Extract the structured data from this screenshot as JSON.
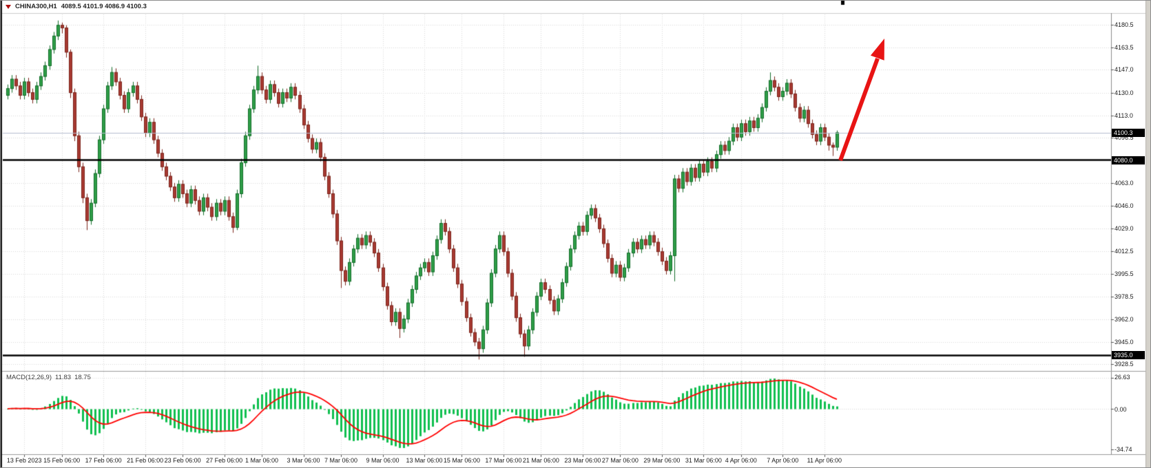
{
  "header": {
    "symbol_title": "CHINA300,H1",
    "ohlc_text": "4089.5 4101.9 4086.9 4100.3"
  },
  "chart_data": {
    "type": "candlestick",
    "symbol": "CHINA300",
    "timeframe": "H1",
    "title": "CHINA300,H1",
    "current_price": 4100.3,
    "current_price_text": "4100.3",
    "current_bar": {
      "open": 4089.5,
      "high": 4101.9,
      "low": 4086.9,
      "close": 4100.3
    },
    "ylim": {
      "top": 4188,
      "bottom": 3924
    },
    "grid": true,
    "price_axis_ticks": [
      4180.5,
      4163.5,
      4147.0,
      4130.0,
      4113.0,
      4096.5,
      4063.0,
      4046.0,
      4029.0,
      4012.5,
      3995.5,
      3978.5,
      3962.0,
      3945.0,
      3928.5
    ],
    "horizontal_lines": [
      {
        "price": 4080.0,
        "label": "4080.0"
      },
      {
        "price": 3935.0,
        "label": "3935.0"
      }
    ],
    "x_axis_labels": [
      {
        "label": "13 Feb 2023",
        "index": 4
      },
      {
        "label": "15 Feb 06:00",
        "index": 13
      },
      {
        "label": "17 Feb 06:00",
        "index": 23
      },
      {
        "label": "21 Feb 06:00",
        "index": 33
      },
      {
        "label": "23 Feb 06:00",
        "index": 42
      },
      {
        "label": "27 Feb 06:00",
        "index": 52
      },
      {
        "label": "1 Mar 06:00",
        "index": 61
      },
      {
        "label": "3 Mar 06:00",
        "index": 71
      },
      {
        "label": "7 Mar 06:00",
        "index": 80
      },
      {
        "label": "9 Mar 06:00",
        "index": 90
      },
      {
        "label": "13 Mar 06:00",
        "index": 100
      },
      {
        "label": "15 Mar 06:00",
        "index": 109
      },
      {
        "label": "17 Mar 06:00",
        "index": 119
      },
      {
        "label": "21 Mar 06:00",
        "index": 128
      },
      {
        "label": "23 Mar 06:00",
        "index": 138
      },
      {
        "label": "27 Mar 06:00",
        "index": 147
      },
      {
        "label": "29 Mar 06:00",
        "index": 157
      },
      {
        "label": "31 Mar 06:00",
        "index": 167
      },
      {
        "label": "4 Apr 06:00",
        "index": 176
      },
      {
        "label": "7 Apr 06:00",
        "index": 186
      },
      {
        "label": "11 Apr 06:00",
        "index": 196
      }
    ],
    "candles": [
      [
        4128,
        4136,
        4125,
        4133
      ],
      [
        4133,
        4143,
        4130,
        4140
      ],
      [
        4140,
        4143,
        4132,
        4135
      ],
      [
        4135,
        4138,
        4125,
        4128
      ],
      [
        4128,
        4141,
        4125,
        4138
      ],
      [
        4138,
        4141,
        4127,
        4130
      ],
      [
        4130,
        4133,
        4122,
        4125
      ],
      [
        4125,
        4138,
        4122,
        4135
      ],
      [
        4135,
        4145,
        4132,
        4142
      ],
      [
        4142,
        4153,
        4139,
        4150
      ],
      [
        4150,
        4165,
        4147,
        4162
      ],
      [
        4162,
        4175,
        4159,
        4172
      ],
      [
        4172,
        4183.5,
        4169,
        4180
      ],
      [
        4180,
        4182,
        4174,
        4178
      ],
      [
        4178,
        4180,
        4156,
        4160
      ],
      [
        4160,
        4162,
        4126,
        4130
      ],
      [
        4130,
        4133,
        4094,
        4098
      ],
      [
        4098,
        4101,
        4071,
        4075
      ],
      [
        4075,
        4078,
        4048,
        4052
      ],
      [
        4052,
        4055,
        4028,
        4035
      ],
      [
        4035,
        4051,
        4032,
        4048
      ],
      [
        4048,
        4073,
        4045,
        4070
      ],
      [
        4070,
        4098,
        4067,
        4095
      ],
      [
        4095,
        4121,
        4092,
        4118
      ],
      [
        4118,
        4138,
        4115,
        4135
      ],
      [
        4135,
        4149,
        4132,
        4145
      ],
      [
        4145,
        4148,
        4135,
        4138
      ],
      [
        4138,
        4141,
        4125,
        4128
      ],
      [
        4128,
        4131,
        4115,
        4118
      ],
      [
        4118,
        4133,
        4115,
        4130
      ],
      [
        4130,
        4138,
        4127,
        4135
      ],
      [
        4135,
        4138,
        4122,
        4125
      ],
      [
        4125,
        4128,
        4109,
        4112
      ],
      [
        4112,
        4115,
        4097,
        4100
      ],
      [
        4100,
        4111,
        4097,
        4108
      ],
      [
        4108,
        4111,
        4092,
        4095
      ],
      [
        4095,
        4098,
        4082,
        4085
      ],
      [
        4085,
        4088,
        4072,
        4075
      ],
      [
        4075,
        4078,
        4065,
        4068
      ],
      [
        4068,
        4071,
        4057,
        4060
      ],
      [
        4060,
        4063,
        4049,
        4052
      ],
      [
        4052,
        4065,
        4049,
        4062
      ],
      [
        4062,
        4065,
        4052,
        4055
      ],
      [
        4055,
        4058,
        4045,
        4048
      ],
      [
        4048,
        4061,
        4045,
        4058
      ],
      [
        4058,
        4061,
        4047,
        4050
      ],
      [
        4050,
        4053,
        4039,
        4042
      ],
      [
        4042,
        4055,
        4039,
        4052
      ],
      [
        4052,
        4055,
        4042,
        4045
      ],
      [
        4045,
        4048,
        4035,
        4038
      ],
      [
        4038,
        4051,
        4035,
        4048
      ],
      [
        4048,
        4051,
        4039,
        4042
      ],
      [
        4042,
        4053,
        4039,
        4050
      ],
      [
        4050,
        4053,
        4035,
        4038
      ],
      [
        4038,
        4041,
        4026,
        4030
      ],
      [
        4030,
        4058,
        4028,
        4055
      ],
      [
        4055,
        4081,
        4052,
        4078
      ],
      [
        4078,
        4101,
        4075,
        4098
      ],
      [
        4098,
        4121,
        4095,
        4118
      ],
      [
        4118,
        4135,
        4115,
        4132
      ],
      [
        4132,
        4150,
        4129,
        4142
      ],
      [
        4142,
        4145,
        4129,
        4132
      ],
      [
        4132,
        4135,
        4122,
        4125
      ],
      [
        4125,
        4139,
        4122,
        4136
      ],
      [
        4136,
        4139,
        4127,
        4130
      ],
      [
        4130,
        4133,
        4119,
        4122
      ],
      [
        4122,
        4133,
        4119,
        4130
      ],
      [
        4130,
        4133,
        4123,
        4126
      ],
      [
        4126,
        4137,
        4123,
        4134
      ],
      [
        4134,
        4137,
        4125,
        4128
      ],
      [
        4128,
        4131,
        4115,
        4118
      ],
      [
        4118,
        4121,
        4103,
        4106
      ],
      [
        4106,
        4109,
        4093,
        4096
      ],
      [
        4096,
        4099,
        4085,
        4088
      ],
      [
        4088,
        4096,
        4085,
        4093
      ],
      [
        4093,
        4096,
        4079,
        4082
      ],
      [
        4082,
        4085,
        4065,
        4068
      ],
      [
        4068,
        4071,
        4052,
        4055
      ],
      [
        4055,
        4058,
        4037,
        4040
      ],
      [
        4040,
        4043,
        4017,
        4020
      ],
      [
        4020,
        4023,
        3985,
        3998
      ],
      [
        3998,
        4001,
        3987,
        3990
      ],
      [
        3990,
        4007,
        3987,
        4004
      ],
      [
        4004,
        4017,
        4001,
        4014
      ],
      [
        4014,
        4025,
        4011,
        4022
      ],
      [
        4022,
        4025,
        4014,
        4017
      ],
      [
        4017,
        4027,
        4014,
        4024
      ],
      [
        4024,
        4027,
        4016,
        4019
      ],
      [
        4019,
        4022,
        4008,
        4011
      ],
      [
        4011,
        4014,
        3997,
        4000
      ],
      [
        4000,
        4003,
        3983,
        3986
      ],
      [
        3986,
        3989,
        3969,
        3972
      ],
      [
        3972,
        3975,
        3957,
        3960
      ],
      [
        3960,
        3970,
        3957,
        3967
      ],
      [
        3967,
        3970,
        3948,
        3955
      ],
      [
        3955,
        3965,
        3952,
        3962
      ],
      [
        3962,
        3977,
        3959,
        3974
      ],
      [
        3974,
        3987,
        3971,
        3984
      ],
      [
        3984,
        3997,
        3981,
        3994
      ],
      [
        3994,
        4003,
        3991,
        4000
      ],
      [
        4000,
        4007,
        3997,
        4004
      ],
      [
        4004,
        4007,
        3994,
        3997
      ],
      [
        3997,
        4012,
        3994,
        4009
      ],
      [
        4009,
        4024,
        4006,
        4021
      ],
      [
        4021,
        4036,
        4018,
        4033
      ],
      [
        4033,
        4036,
        4024,
        4027
      ],
      [
        4027,
        4030,
        4011,
        4014
      ],
      [
        4014,
        4017,
        3997,
        4000
      ],
      [
        4000,
        4003,
        3985,
        3988
      ],
      [
        3988,
        3991,
        3972,
        3975
      ],
      [
        3975,
        3978,
        3960,
        3963
      ],
      [
        3963,
        3966,
        3949,
        3952
      ],
      [
        3952,
        3955,
        3942,
        3945
      ],
      [
        3945,
        3948,
        3932,
        3940
      ],
      [
        3940,
        3957,
        3937,
        3954
      ],
      [
        3954,
        3977,
        3951,
        3974
      ],
      [
        3974,
        3999,
        3971,
        3996
      ],
      [
        3996,
        4017,
        3993,
        4014
      ],
      [
        4014,
        4027,
        4011,
        4024
      ],
      [
        4024,
        4027,
        4009,
        4012
      ],
      [
        4012,
        4015,
        3993,
        3996
      ],
      [
        3996,
        3999,
        3976,
        3979
      ],
      [
        3979,
        3982,
        3960,
        3963
      ],
      [
        3963,
        3966,
        3948,
        3951
      ],
      [
        3951,
        3954,
        3934,
        3942
      ],
      [
        3942,
        3957,
        3939,
        3954
      ],
      [
        3954,
        3970,
        3951,
        3967
      ],
      [
        3967,
        3982,
        3964,
        3979
      ],
      [
        3979,
        3992,
        3976,
        3989
      ],
      [
        3989,
        3992,
        3981,
        3984
      ],
      [
        3984,
        3987,
        3973,
        3976
      ],
      [
        3976,
        3979,
        3965,
        3968
      ],
      [
        3968,
        3980,
        3965,
        3977
      ],
      [
        3977,
        3992,
        3974,
        3989
      ],
      [
        3989,
        4004,
        3986,
        4001
      ],
      [
        4001,
        4017,
        3998,
        4014
      ],
      [
        4014,
        4027,
        4011,
        4024
      ],
      [
        4024,
        4034,
        4021,
        4031
      ],
      [
        4031,
        4034,
        4024,
        4027
      ],
      [
        4027,
        4042,
        4024,
        4039
      ],
      [
        4039,
        4047,
        4036,
        4044
      ],
      [
        4044,
        4047,
        4034,
        4037
      ],
      [
        4037,
        4040,
        4026,
        4029
      ],
      [
        4029,
        4032,
        4015,
        4018
      ],
      [
        4018,
        4021,
        4004,
        4007
      ],
      [
        4007,
        4010,
        3993,
        3996
      ],
      [
        3996,
        4005,
        3993,
        4002
      ],
      [
        4002,
        4005,
        3990,
        3993
      ],
      [
        3993,
        4003,
        3990,
        4000
      ],
      [
        4000,
        4014,
        3997,
        4011
      ],
      [
        4011,
        4022,
        4008,
        4019
      ],
      [
        4019,
        4022,
        4011,
        4014
      ],
      [
        4014,
        4024,
        4011,
        4021
      ],
      [
        4021,
        4024,
        4014,
        4017
      ],
      [
        4017,
        4027,
        4014,
        4024
      ],
      [
        4024,
        4027,
        4016,
        4019
      ],
      [
        4019,
        4022,
        4009,
        4012
      ],
      [
        4012,
        4015,
        4002,
        4005
      ],
      [
        4005,
        4008,
        3995,
        3998
      ],
      [
        3998,
        4012,
        3995,
        4009
      ],
      [
        4009,
        4069,
        3990,
        4066
      ],
      [
        4066,
        4069,
        4056,
        4059
      ],
      [
        4059,
        4074,
        4056,
        4071
      ],
      [
        4071,
        4074,
        4061,
        4064
      ],
      [
        4064,
        4077,
        4061,
        4074
      ],
      [
        4074,
        4077,
        4064,
        4067
      ],
      [
        4067,
        4080,
        4064,
        4077
      ],
      [
        4077,
        4080,
        4068,
        4071
      ],
      [
        4071,
        4082,
        4068,
        4079
      ],
      [
        4079,
        4082,
        4071,
        4074
      ],
      [
        4074,
        4087,
        4071,
        4084
      ],
      [
        4084,
        4094,
        4081,
        4091
      ],
      [
        4091,
        4094,
        4084,
        4087
      ],
      [
        4087,
        4097,
        4084,
        4094
      ],
      [
        4094,
        4107,
        4091,
        4104
      ],
      [
        4104,
        4107,
        4094,
        4097
      ],
      [
        4097,
        4110,
        4094,
        4107
      ],
      [
        4107,
        4110,
        4098,
        4101
      ],
      [
        4101,
        4112,
        4098,
        4109
      ],
      [
        4109,
        4112,
        4101,
        4104
      ],
      [
        4104,
        4114,
        4101,
        4111
      ],
      [
        4111,
        4122,
        4108,
        4119
      ],
      [
        4119,
        4134,
        4116,
        4131
      ],
      [
        4131,
        4145,
        4128,
        4139
      ],
      [
        4139,
        4142,
        4131,
        4134
      ],
      [
        4134,
        4137,
        4124,
        4127
      ],
      [
        4127,
        4134,
        4124,
        4131
      ],
      [
        4131,
        4140,
        4128,
        4137
      ],
      [
        4137,
        4140,
        4126,
        4129
      ],
      [
        4129,
        4132,
        4116,
        4119
      ],
      [
        4119,
        4122,
        4108,
        4111
      ],
      [
        4111,
        4120,
        4108,
        4117
      ],
      [
        4117,
        4120,
        4104,
        4107
      ],
      [
        4107,
        4110,
        4096,
        4099
      ],
      [
        4099,
        4102,
        4091,
        4094
      ],
      [
        4094,
        4107,
        4091,
        4104
      ],
      [
        4104,
        4107,
        4094,
        4097
      ],
      [
        4097,
        4100,
        4087,
        4091
      ],
      [
        4091,
        4093,
        4083,
        4089.5
      ],
      [
        4089.5,
        4101.9,
        4086.9,
        4100.3
      ]
    ],
    "indicator": {
      "name": "MACD",
      "params": "12,26,9",
      "label": "MACD(12,26,9)",
      "fast": 12,
      "slow": 26,
      "signal": 9,
      "macd_value": 11.83,
      "signal_value": 18.75,
      "macd_value_text": "11.83",
      "signal_value_text": "18.75",
      "axis_labels": [
        "26.63",
        "0.00",
        "-34.74"
      ],
      "axis_ticks": [
        26.63,
        0.0,
        -34.74
      ]
    },
    "annotation": {
      "type": "arrow-up-right",
      "color": "#e81414"
    }
  },
  "colors": {
    "background": "#ffffff",
    "grid": "#d9d9d9",
    "bull": "#2f9e48",
    "bull_border": "#116b27",
    "bear": "#a83a32",
    "bear_border": "#7b231a",
    "hline": "#000000",
    "price_line": "#b4bdd0",
    "macd_histogram": "#0fbf4f",
    "macd_signal": "#ff0000",
    "arrow": "#e81414",
    "badge_bg": "#000000",
    "badge_text": "#ffffff",
    "axis_text": "#1a1a1a",
    "window_strip": "#d4d1ca"
  }
}
